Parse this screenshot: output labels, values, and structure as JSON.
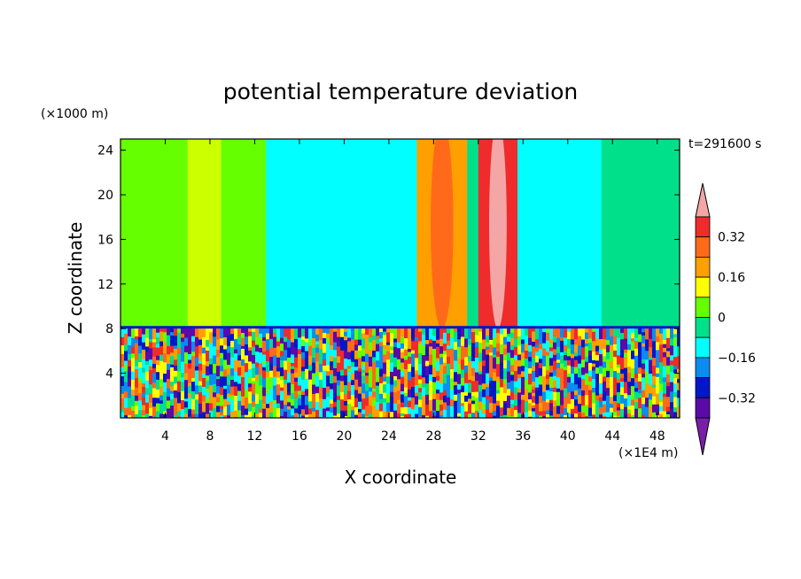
{
  "chart_data": {
    "type": "heatmap",
    "title": "potential temperature deviation",
    "xlabel": "X coordinate",
    "ylabel": "Z coordinate",
    "x_unit": "(×1E4 m)",
    "y_unit": "(×1000 m)",
    "time_label": "t=291600 s",
    "xlim": [
      0,
      50
    ],
    "ylim": [
      0,
      25
    ],
    "x_ticks": [
      4,
      8,
      12,
      16,
      20,
      24,
      28,
      32,
      36,
      40,
      44,
      48
    ],
    "y_ticks": [
      4,
      8,
      12,
      16,
      20,
      24
    ],
    "colorbar": {
      "levels": [
        -0.4,
        -0.32,
        -0.24,
        -0.16,
        -0.08,
        0,
        0.08,
        0.16,
        0.24,
        0.32,
        0.4
      ],
      "labels": [
        "0.32",
        "0.16",
        "0",
        "−0.16",
        "−0.32"
      ],
      "label_values": [
        0.32,
        0.16,
        0,
        -0.16,
        -0.32
      ],
      "colors_high_to_low": [
        "#f4a6a6",
        "#ef2b2b",
        "#ff6a1a",
        "#ff9f00",
        "#ffff00",
        "#66ff00",
        "#00e08a",
        "#00ffff",
        "#0a8cf0",
        "#0018c8",
        "#5a0aa8",
        "#7a1eaa"
      ]
    },
    "stratosphere_field": [
      {
        "x0": 0,
        "x1": 6,
        "value": 0.05,
        "color": "#66ff00"
      },
      {
        "x0": 6,
        "x1": 9,
        "value": 0.09,
        "color": "#ccff00"
      },
      {
        "x0": 9,
        "x1": 13,
        "value": 0.05,
        "color": "#66ff00"
      },
      {
        "x0": 13,
        "x1": 26.5,
        "value": -0.06,
        "color": "#00ffff"
      },
      {
        "x0": 26.5,
        "x1": 31,
        "value": 0.22,
        "color": "#ff9f00"
      },
      {
        "x0": 31,
        "x1": 32,
        "value": -0.02,
        "color": "#00e08a"
      },
      {
        "x0": 32,
        "x1": 35.5,
        "value": 0.34,
        "color": "#ef2b2b"
      },
      {
        "x0": 35.5,
        "x1": 43,
        "value": -0.06,
        "color": "#00ffff"
      },
      {
        "x0": 43,
        "x1": 50,
        "value": 0.02,
        "color": "#00e08a"
      }
    ],
    "tropopause_height": 8,
    "boundary_layer_value_range": [
      -0.4,
      0.4
    ]
  }
}
